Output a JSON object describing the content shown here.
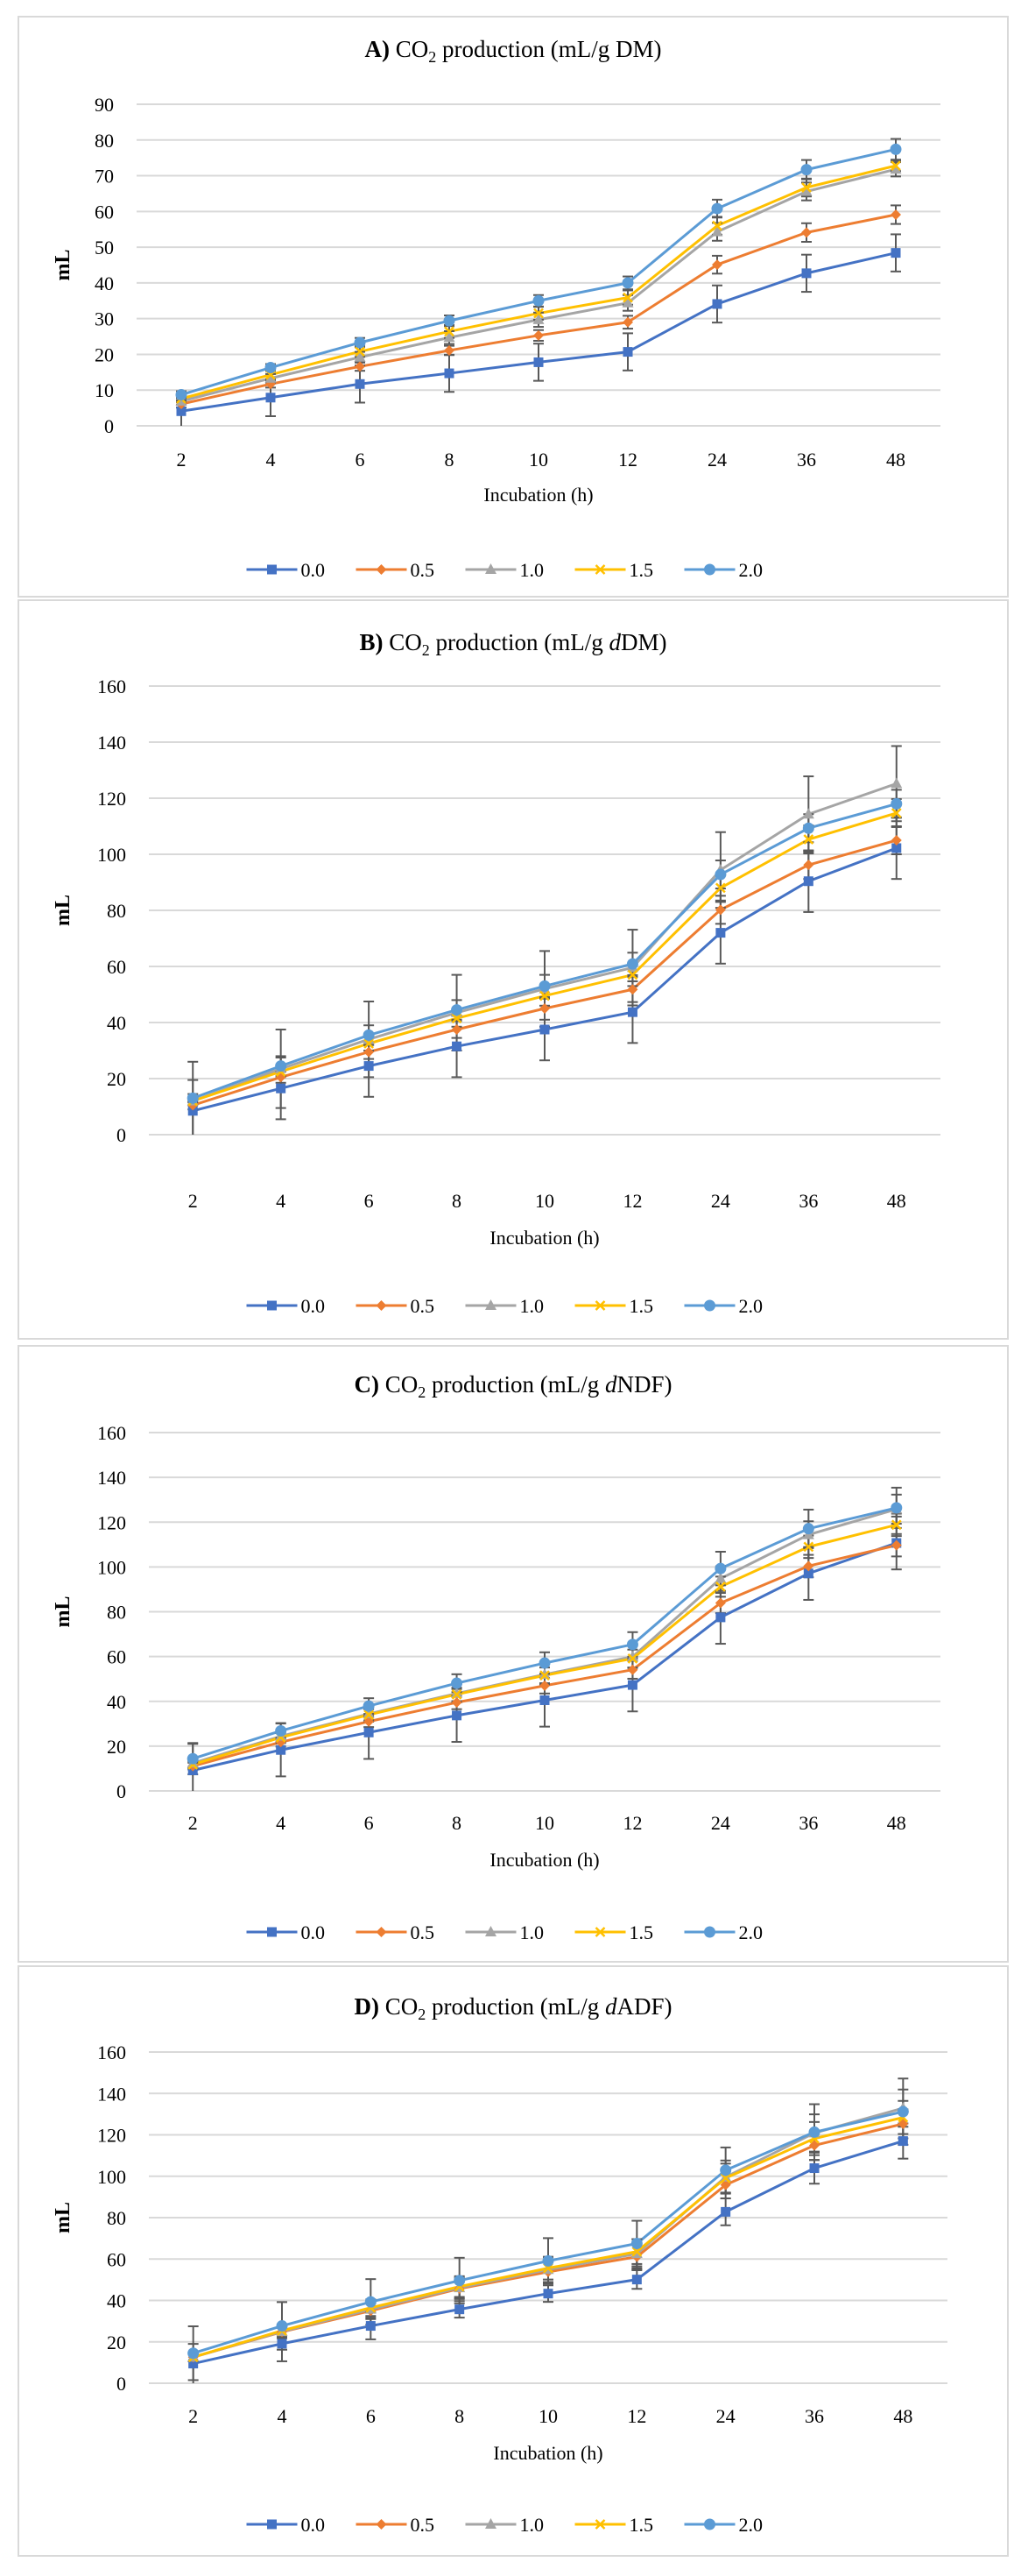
{
  "chart_data": [
    {
      "type": "line",
      "panel_label": "A)",
      "title_main": " CO",
      "title_sub": "2",
      "title_rest": " production (mL/g ",
      "title_italic": "",
      "title_end": "DM)",
      "xlabel": "Incubation (h)",
      "ylabel": "mL",
      "categories": [
        "2",
        "4",
        "6",
        "8",
        "10",
        "12",
        "24",
        "36",
        "48"
      ],
      "ylim": [
        0,
        90
      ],
      "yticks": [
        0,
        10,
        20,
        30,
        40,
        50,
        60,
        70,
        80,
        90
      ],
      "grid": true,
      "legend_position": "bottom",
      "series": [
        {
          "name": "0.0",
          "color": "#4472C4",
          "marker": "square",
          "values": [
            4.1,
            7.9,
            11.7,
            14.7,
            17.8,
            20.7,
            34.1,
            42.7,
            48.4
          ],
          "errors": [
            5.0,
            5.2,
            5.2,
            5.2,
            5.2,
            5.2,
            5.2,
            5.2,
            5.2
          ]
        },
        {
          "name": "0.5",
          "color": "#ED7D31",
          "marker": "diamond",
          "values": [
            6.1,
            11.7,
            16.6,
            21.1,
            25.3,
            29.0,
            45.1,
            54.1,
            59.1
          ],
          "errors": [
            1.0,
            1.0,
            1.2,
            1.3,
            1.5,
            1.8,
            2.5,
            2.6,
            2.6
          ]
        },
        {
          "name": "1.0",
          "color": "#A5A5A5",
          "marker": "triangle",
          "values": [
            6.9,
            13.3,
            19.2,
            24.7,
            29.7,
            34.4,
            54.3,
            65.6,
            71.8
          ],
          "errors": [
            1.0,
            1.2,
            1.5,
            1.8,
            2.0,
            2.2,
            2.5,
            2.5,
            2.0
          ]
        },
        {
          "name": "1.5",
          "color": "#FFC000",
          "marker": "x",
          "values": [
            7.6,
            14.3,
            20.8,
            26.4,
            31.5,
            35.9,
            56.0,
            66.7,
            72.8
          ],
          "errors": [
            1.0,
            1.2,
            1.5,
            1.8,
            1.8,
            2.0,
            2.5,
            2.5,
            1.5
          ]
        },
        {
          "name": "2.0",
          "color": "#5B9BD5",
          "marker": "circle",
          "values": [
            8.7,
            16.3,
            23.3,
            29.4,
            35.0,
            40.0,
            60.8,
            71.7,
            77.4
          ],
          "errors": [
            1.0,
            1.0,
            1.3,
            1.5,
            1.6,
            1.8,
            2.5,
            2.7,
            2.9
          ]
        }
      ]
    },
    {
      "type": "line",
      "panel_label": "B)",
      "title_main": " CO",
      "title_sub": "2",
      "title_rest": " production (mL/g ",
      "title_italic": "d",
      "title_end": "DM)",
      "xlabel": "Incubation (h)",
      "ylabel": "mL",
      "categories": [
        "2",
        "4",
        "6",
        "8",
        "10",
        "12",
        "24",
        "36",
        "48"
      ],
      "ylim": [
        0,
        160
      ],
      "yticks": [
        0,
        20,
        40,
        60,
        80,
        100,
        120,
        140,
        160
      ],
      "grid": true,
      "legend_position": "bottom",
      "series": [
        {
          "name": "0.0",
          "color": "#4472C4",
          "marker": "square",
          "values": [
            8.5,
            16.5,
            24.5,
            31.5,
            37.5,
            43.7,
            72.0,
            90.4,
            102.2
          ],
          "errors": [
            11.0,
            11.0,
            11.0,
            11.0,
            11.0,
            11.0,
            11.0,
            11.0,
            11.0
          ]
        },
        {
          "name": "0.5",
          "color": "#ED7D31",
          "marker": "diamond",
          "values": [
            10.5,
            20.5,
            29.5,
            37.5,
            45.0,
            51.8,
            80.2,
            96.2,
            105.0
          ],
          "errors": [
            1.5,
            2.0,
            2.5,
            3.0,
            4.0,
            4.5,
            5.0,
            5.0,
            5.0
          ]
        },
        {
          "name": "1.0",
          "color": "#A5A5A5",
          "marker": "triangle",
          "values": [
            12.0,
            23.5,
            34.0,
            43.5,
            52.0,
            59.6,
            94.4,
            114.3,
            125.2
          ],
          "errors": [
            14.0,
            14.0,
            13.5,
            13.5,
            13.5,
            13.5,
            13.5,
            13.5,
            13.4
          ]
        },
        {
          "name": "1.5",
          "color": "#FFC000",
          "marker": "x",
          "values": [
            12.0,
            22.5,
            32.5,
            41.5,
            49.5,
            57.0,
            88.0,
            105.3,
            114.7
          ],
          "errors": [
            1.5,
            2.0,
            2.5,
            3.0,
            3.5,
            4.0,
            4.5,
            5.0,
            5.0
          ]
        },
        {
          "name": "2.0",
          "color": "#5B9BD5",
          "marker": "circle",
          "values": [
            13.0,
            24.5,
            35.5,
            44.5,
            53.0,
            60.9,
            92.8,
            109.3,
            118.0
          ],
          "errors": [
            1.5,
            3.5,
            3.5,
            3.5,
            4.0,
            4.0,
            5.0,
            5.0,
            5.0
          ]
        }
      ]
    },
    {
      "type": "line",
      "panel_label": "C)",
      "title_main": " CO",
      "title_sub": "2",
      "title_rest": " production (mL/g ",
      "title_italic": "d",
      "title_end": "NDF)",
      "xlabel": "Incubation (h)",
      "ylabel": "mL",
      "categories": [
        "2",
        "4",
        "6",
        "8",
        "10",
        "12",
        "24",
        "36",
        "48"
      ],
      "ylim": [
        0,
        160
      ],
      "yticks": [
        0,
        20,
        40,
        60,
        80,
        100,
        120,
        140,
        160
      ],
      "grid": true,
      "legend_position": "bottom",
      "series": [
        {
          "name": "0.0",
          "color": "#4472C4",
          "marker": "square",
          "values": [
            9.2,
            18.3,
            26.1,
            33.7,
            40.5,
            47.3,
            77.5,
            97.1,
            110.7
          ],
          "errors": [
            11.8,
            11.8,
            11.8,
            11.8,
            11.8,
            11.8,
            11.8,
            11.8,
            11.8
          ]
        },
        {
          "name": "0.5",
          "color": "#ED7D31",
          "marker": "diamond",
          "values": [
            11.1,
            21.8,
            31.0,
            39.5,
            47.0,
            54.1,
            83.9,
            100.4,
            109.7
          ],
          "errors": [
            1.5,
            2.0,
            2.5,
            3.0,
            3.5,
            4.0,
            4.5,
            5.0,
            5.0
          ]
        },
        {
          "name": "1.0",
          "color": "#A5A5A5",
          "marker": "triangle",
          "values": [
            12.4,
            24.4,
            34.4,
            43.5,
            52.0,
            59.9,
            94.8,
            114.4,
            125.8
          ],
          "errors": [
            2.0,
            3.0,
            3.5,
            4.0,
            4.5,
            5.0,
            5.5,
            6.0,
            6.5
          ]
        },
        {
          "name": "1.5",
          "color": "#FFC000",
          "marker": "x",
          "values": [
            11.8,
            23.9,
            34.0,
            43.1,
            51.6,
            59.1,
            91.2,
            109.0,
            118.8
          ],
          "errors": [
            1.5,
            2.0,
            2.5,
            3.0,
            3.5,
            4.0,
            4.5,
            5.0,
            5.0
          ]
        },
        {
          "name": "2.0",
          "color": "#5B9BD5",
          "marker": "circle",
          "values": [
            14.4,
            26.8,
            37.9,
            48.1,
            57.1,
            65.4,
            99.3,
            117.1,
            126.4
          ],
          "errors": [
            7.0,
            3.5,
            3.5,
            4.0,
            4.8,
            5.5,
            7.5,
            8.5,
            9.0
          ]
        }
      ]
    },
    {
      "type": "line",
      "panel_label": "D)",
      "title_main": " CO",
      "title_sub": "2",
      "title_rest": " production (mL/g ",
      "title_italic": "d",
      "title_end": "ADF)",
      "xlabel": "Incubation (h)",
      "ylabel": "mL",
      "categories": [
        "2",
        "4",
        "6",
        "8",
        "10",
        "12",
        "24",
        "36",
        "48"
      ],
      "ylim": [
        0,
        160
      ],
      "yticks": [
        0,
        20,
        40,
        60,
        80,
        100,
        120,
        140,
        160
      ],
      "grid": true,
      "legend_position": "bottom",
      "series": [
        {
          "name": "0.0",
          "color": "#4472C4",
          "marker": "square",
          "values": [
            9.5,
            19.1,
            27.7,
            35.7,
            43.3,
            50.1,
            82.8,
            103.9,
            117.0
          ],
          "errors": [
            9.5,
            8.5,
            6.5,
            4.0,
            4.0,
            4.5,
            6.5,
            7.5,
            8.5
          ]
        },
        {
          "name": "0.5",
          "color": "#ED7D31",
          "marker": "diamond",
          "values": [
            12.6,
            24.8,
            35.0,
            45.7,
            53.8,
            61.1,
            95.8,
            114.9,
            125.3
          ],
          "errors": [
            2.0,
            3.0,
            4.0,
            5.0,
            5.5,
            6.0,
            6.5,
            7.0,
            7.0
          ]
        },
        {
          "name": "1.0",
          "color": "#A5A5A5",
          "marker": "triangle",
          "values": [
            12.6,
            25.0,
            35.7,
            46.1,
            54.9,
            62.6,
            99.6,
            120.9,
            132.9
          ],
          "errors": [
            2.0,
            3.0,
            4.0,
            5.0,
            6.0,
            7.0,
            8.0,
            9.0,
            9.0
          ]
        },
        {
          "name": "1.5",
          "color": "#FFC000",
          "marker": "x",
          "values": [
            12.6,
            25.4,
            36.5,
            46.7,
            55.6,
            63.6,
            99.1,
            118.2,
            128.4
          ],
          "errors": [
            2.0,
            3.0,
            4.0,
            5.0,
            5.5,
            6.0,
            7.0,
            8.0,
            8.0
          ]
        },
        {
          "name": "2.0",
          "color": "#5B9BD5",
          "marker": "circle",
          "values": [
            14.5,
            27.7,
            39.3,
            49.6,
            59.1,
            67.5,
            102.9,
            121.3,
            131.2
          ],
          "errors": [
            13.0,
            11.5,
            11.0,
            11.0,
            11.0,
            11.0,
            11.0,
            13.5,
            16.0
          ]
        }
      ]
    }
  ]
}
